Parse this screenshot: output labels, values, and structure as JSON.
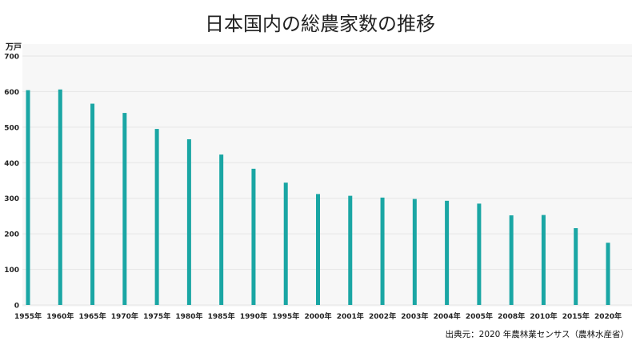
{
  "title": "日本国内の総農家数の推移",
  "source": "出典元：2020 年農林業センサス（農林水産省）",
  "colors": {
    "bar": "#1aa6a4",
    "plot_bg": "#f7f7f7",
    "grid": "#e6e6e6",
    "text": "#222222"
  },
  "chart_data": {
    "type": "bar",
    "title": "日本国内の総農家数の推移",
    "ylabel": "万戸",
    "xlabel": "",
    "ylim": [
      0,
      700
    ],
    "yticks": [
      0,
      100,
      200,
      300,
      400,
      500,
      600,
      700
    ],
    "grid": true,
    "legend": "none",
    "categories": [
      "1955年",
      "1960年",
      "1965年",
      "1970年",
      "1975年",
      "1980年",
      "1985年",
      "1990年",
      "1995年",
      "2000年",
      "2001年",
      "2002年",
      "2003年",
      "2004年",
      "2005年",
      "2008年",
      "2010年",
      "2015年",
      "2020年"
    ],
    "values": [
      604,
      606,
      566,
      540,
      495,
      466,
      423,
      383,
      344,
      312,
      307,
      302,
      298,
      293,
      285,
      252,
      253,
      216,
      175
    ]
  }
}
